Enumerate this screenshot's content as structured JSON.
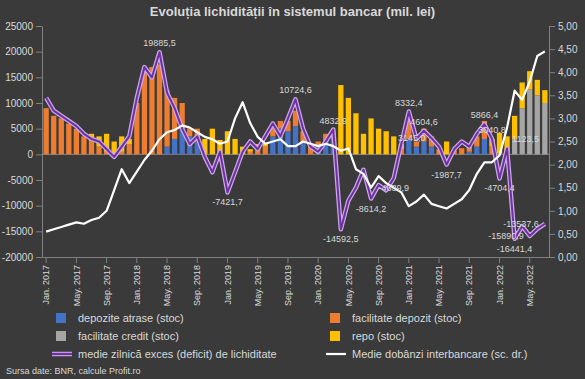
{
  "chart_data": {
    "type": "bar",
    "title": "Evoluția lichidității în sistemul bancar (mil. lei)",
    "annotations": [
      "Sursa date: BNR, calcule Profit.ro"
    ],
    "categories": [
      "Jan. 2017",
      null,
      null,
      null,
      "May. 2017",
      null,
      null,
      null,
      "Sep. 2017",
      null,
      null,
      null,
      "Jan. 2018",
      null,
      null,
      null,
      "May. 2018",
      null,
      null,
      null,
      "Sep. 2018",
      null,
      null,
      null,
      "Jan. 2019",
      null,
      null,
      null,
      "May. 2019",
      null,
      null,
      null,
      "Sep. 2019",
      null,
      null,
      null,
      "Jan. 2020",
      null,
      null,
      null,
      "May. 2020",
      null,
      null,
      null,
      "Sep. 2020",
      null,
      null,
      null,
      "Jan. 2021",
      null,
      null,
      null,
      "May. 2021",
      null,
      null,
      null,
      "Sep. 2021",
      null,
      null,
      null,
      "Jan. 2022",
      null,
      null,
      null,
      "May. 2022",
      null,
      null
    ],
    "stacked": true,
    "legend": "bottom",
    "grid": false,
    "data_labels": true,
    "ylim": [
      -20000,
      25000
    ],
    "yticks": [
      -20000,
      -15000,
      -10000,
      -5000,
      0,
      5000,
      10000,
      15000,
      20000,
      25000
    ],
    "y2lim": [
      0,
      5
    ],
    "y2ticks": [
      {
        "value": 0,
        "label": "0,00"
      },
      {
        "value": 0.5,
        "label": "0,50"
      },
      {
        "value": 1,
        "label": "1,00"
      },
      {
        "value": 1.5,
        "label": "1,50"
      },
      {
        "value": 2,
        "label": "2,00"
      },
      {
        "value": 2.5,
        "label": "2,50"
      },
      {
        "value": 3,
        "label": "3,00"
      },
      {
        "value": 3.5,
        "label": "3,50"
      },
      {
        "value": 4,
        "label": "4,00"
      },
      {
        "value": 4.5,
        "label": "4,50"
      },
      {
        "value": 5,
        "label": "5,00"
      }
    ],
    "series": [
      {
        "name": "depozite atrase (stoc)",
        "type": "bar",
        "color": "#4472c4",
        "values": [
          0,
          0,
          0,
          0,
          0,
          0,
          0,
          0,
          0,
          0,
          0,
          0,
          0,
          0,
          0,
          0,
          1500,
          3000,
          5000,
          3500,
          2500,
          0,
          0,
          0,
          0,
          0,
          0,
          0,
          0,
          0,
          3500,
          5000,
          4500,
          5500,
          2500,
          0,
          1500,
          2500,
          3000,
          0,
          0,
          0,
          0,
          0,
          0,
          0,
          0,
          0,
          3000,
          1500,
          2500,
          1500,
          0,
          0,
          0,
          0,
          500,
          1500,
          3000,
          0,
          0,
          0,
          0,
          0,
          0,
          0,
          0
        ]
      },
      {
        "name": "facilitate depozit (stoc)",
        "type": "bar",
        "color": "#ed7d31",
        "values": [
          9000,
          7500,
          7000,
          6000,
          5000,
          3500,
          2500,
          1500,
          500,
          0,
          500,
          2000,
          10000,
          16000,
          17000,
          17500,
          11000,
          8000,
          5000,
          1500,
          2500,
          0,
          0,
          300,
          0,
          0,
          0,
          500,
          1000,
          1500,
          2000,
          1500,
          2000,
          3000,
          2000,
          1500,
          1000,
          1500,
          1500,
          0,
          0,
          0,
          0,
          0,
          0,
          0,
          0,
          1000,
          3500,
          1000,
          2500,
          2000,
          1000,
          0,
          800,
          1200,
          1000,
          2000,
          3500,
          1500,
          200,
          500,
          0,
          0,
          0,
          0,
          0
        ]
      },
      {
        "name": "facilitate credit (stoc)",
        "type": "bar",
        "color": "#a5a5a5",
        "values": [
          0,
          0,
          0,
          0,
          0,
          0,
          0,
          0,
          0,
          0,
          0,
          0,
          0,
          0,
          0,
          0,
          0,
          0,
          0,
          0,
          0,
          0,
          0,
          0,
          0,
          0,
          0,
          0,
          0,
          0,
          0,
          0,
          0,
          0,
          0,
          0,
          0,
          0,
          0,
          0,
          0,
          0,
          0,
          0,
          0,
          0,
          0,
          0,
          0,
          0,
          0,
          0,
          0,
          0,
          0,
          0,
          0,
          0,
          0,
          0,
          0,
          0,
          3000,
          9000,
          12700,
          11500,
          10000
        ]
      },
      {
        "name": "repo (stoc)",
        "type": "bar",
        "color": "#ffc000",
        "values": [
          0,
          0,
          0,
          0,
          0,
          0,
          1500,
          2000,
          3500,
          2500,
          3000,
          1000,
          0,
          0,
          0,
          0,
          0,
          0,
          0,
          0,
          0,
          3000,
          5000,
          2500,
          4500,
          3000,
          1500,
          500,
          1000,
          500,
          0,
          0,
          0,
          0,
          0,
          0,
          0,
          0,
          0,
          13500,
          11000,
          8000,
          4000,
          7000,
          5000,
          4500,
          3500,
          1000,
          0,
          0,
          0,
          0,
          0,
          2500,
          0,
          0,
          0,
          0,
          0,
          1500,
          4000,
          3000,
          4500,
          5000,
          3500,
          3000,
          2500
        ]
      },
      {
        "name": "medie zilnică exces (deficit) de lichiditate",
        "type": "line",
        "color": "#7030a0",
        "values": [
          11000,
          8500,
          7500,
          6500,
          5500,
          4000,
          3000,
          2500,
          1000,
          -500,
          1500,
          3500,
          11000,
          17000,
          15000,
          19885.5,
          12000,
          9000,
          5000,
          2000,
          3500,
          -500,
          -3500,
          500,
          -7421.7,
          -3500,
          500,
          2500,
          1000,
          3500,
          6000,
          3500,
          7000,
          10724.6,
          5000,
          1500,
          500,
          2500,
          4832.9,
          -14592.5,
          -9000,
          -6500,
          -3000,
          -8614.2,
          -6000,
          -7000,
          -4639.9,
          2000,
          8332.4,
          3000,
          4604.6,
          3145,
          1500,
          -1987.7,
          1000,
          2500,
          1500,
          4000,
          5866.4,
          3040.8,
          -4704.4,
          1123.5,
          -16441.4,
          -14000,
          -15890.9,
          -14500,
          -13537.6
        ],
        "value_labels": [
          null,
          null,
          null,
          null,
          null,
          null,
          null,
          null,
          null,
          null,
          null,
          null,
          null,
          null,
          null,
          "19885,5",
          null,
          null,
          null,
          null,
          null,
          null,
          null,
          null,
          "-7421,7",
          null,
          null,
          null,
          null,
          null,
          null,
          null,
          null,
          "10724,6",
          null,
          null,
          null,
          null,
          "4832,9",
          "-14592,5",
          null,
          null,
          null,
          "-8614,2",
          null,
          null,
          "-4639,9",
          null,
          "8332,4",
          null,
          "4604,6",
          "3145,0",
          null,
          "-1987,7",
          null,
          null,
          null,
          null,
          "5866,4",
          "3040,8",
          "-4704,4",
          "1123,5",
          "-16441,4",
          null,
          "-15890,9",
          null,
          "-13537,6"
        ]
      },
      {
        "name": "Medie dobânzi interbancare (sc. dr.)",
        "type": "line",
        "color": "#ffffff",
        "axis": "y2",
        "values": [
          0.55,
          0.6,
          0.65,
          0.7,
          0.75,
          0.72,
          0.8,
          0.85,
          1.0,
          1.45,
          1.9,
          1.6,
          1.85,
          2.1,
          2.3,
          2.55,
          2.7,
          2.75,
          2.85,
          2.8,
          2.7,
          2.6,
          2.55,
          2.45,
          2.5,
          3.0,
          3.35,
          2.9,
          2.6,
          2.45,
          2.5,
          2.55,
          2.4,
          2.4,
          2.5,
          2.45,
          2.4,
          2.45,
          2.4,
          2.3,
          2.35,
          1.9,
          1.8,
          1.5,
          1.75,
          1.6,
          1.5,
          1.4,
          1.1,
          1.2,
          1.35,
          1.15,
          1.1,
          1.05,
          1.15,
          1.25,
          1.45,
          1.8,
          2.05,
          2.05,
          2.2,
          2.8,
          3.6,
          3.4,
          3.8,
          4.35,
          4.45
        ]
      }
    ]
  }
}
